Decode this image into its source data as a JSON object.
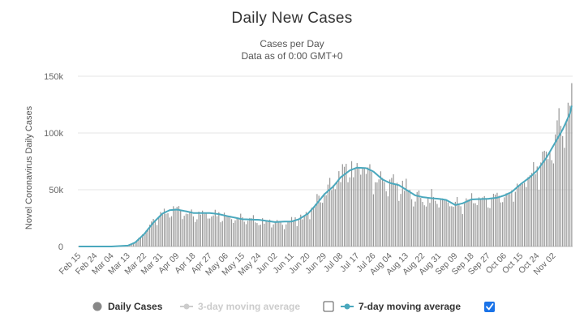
{
  "chart_data": {
    "type": "bar",
    "title": "Daily New Cases",
    "subtitle_lines": [
      "Cases per Day",
      "Data as of 0:00 GMT+0"
    ],
    "ylabel": "Novel Coronavirus Daily Cases",
    "xlabel": "",
    "ylim": [
      0,
      150000
    ],
    "y_ticks": [
      {
        "value": 0,
        "label": "0"
      },
      {
        "value": 50000,
        "label": "50k"
      },
      {
        "value": 100000,
        "label": "100k"
      },
      {
        "value": 150000,
        "label": "150k"
      }
    ],
    "x_tick_labels": [
      "Feb 15",
      "Feb 24",
      "Mar 04",
      "Mar 13",
      "Mar 22",
      "Mar 31",
      "Apr 09",
      "Apr 18",
      "Apr 27",
      "May 06",
      "May 15",
      "May 24",
      "Jun 02",
      "Jun 11",
      "Jun 20",
      "Jun 29",
      "Jul 08",
      "Jul 17",
      "Jul 26",
      "Aug 04",
      "Aug 13",
      "Aug 22",
      "Aug 31",
      "Sep 09",
      "Sep 18",
      "Sep 27",
      "Oct 06",
      "Oct 15",
      "Oct 24",
      "Nov 02"
    ],
    "start_date": "Feb 15",
    "grid": true,
    "legend": {
      "placement": "bottom",
      "items": [
        {
          "label": "Daily Cases",
          "color": "#888888",
          "symbol": "circle",
          "checkbox": false
        },
        {
          "label": "3-day moving average",
          "color": "#cccccc",
          "symbol": "line-circle",
          "checkbox": true,
          "checked": false
        },
        {
          "label": "7-day moving average",
          "color": "#4aa8bd",
          "symbol": "line-circle",
          "checkbox": true,
          "checked": true
        }
      ]
    },
    "series": [
      {
        "name": "Daily Cases",
        "color": "#999999",
        "anchors": [
          [
            "Feb 15",
            0
          ],
          [
            "Mar 04",
            0
          ],
          [
            "Mar 13",
            1000
          ],
          [
            "Mar 17",
            4000
          ],
          [
            "Mar 22",
            12000
          ],
          [
            "Mar 27",
            22000
          ],
          [
            "Apr 01",
            30000
          ],
          [
            "Apr 05",
            33000
          ],
          [
            "Apr 09",
            33000
          ],
          [
            "Apr 18",
            30000
          ],
          [
            "Apr 27",
            30000
          ],
          [
            "May 06",
            28000
          ],
          [
            "May 15",
            24000
          ],
          [
            "May 24",
            23000
          ],
          [
            "Jun 02",
            21000
          ],
          [
            "Jun 11",
            22000
          ],
          [
            "Jun 15",
            24000
          ],
          [
            "Jun 20",
            30000
          ],
          [
            "Jun 24",
            38000
          ],
          [
            "Jun 29",
            48000
          ],
          [
            "Jul 04",
            55000
          ],
          [
            "Jul 08",
            63000
          ],
          [
            "Jul 13",
            68000
          ],
          [
            "Jul 17",
            70000
          ],
          [
            "Jul 22",
            68000
          ],
          [
            "Jul 26",
            64000
          ],
          [
            "Jul 31",
            57000
          ],
          [
            "Aug 04",
            56000
          ],
          [
            "Aug 09",
            54000
          ],
          [
            "Aug 13",
            50000
          ],
          [
            "Aug 18",
            44000
          ],
          [
            "Aug 22",
            43000
          ],
          [
            "Aug 31",
            42000
          ],
          [
            "Sep 04",
            41000
          ],
          [
            "Sep 09",
            36000
          ],
          [
            "Sep 13",
            38000
          ],
          [
            "Sep 18",
            42000
          ],
          [
            "Sep 27",
            42000
          ],
          [
            "Oct 06",
            45000
          ],
          [
            "Oct 10",
            48000
          ],
          [
            "Oct 15",
            56000
          ],
          [
            "Oct 20",
            62000
          ],
          [
            "Oct 24",
            68000
          ],
          [
            "Oct 29",
            80000
          ],
          [
            "Nov 02",
            93000
          ],
          [
            "Nov 07",
            110000
          ],
          [
            "Nov 11",
            127000
          ],
          [
            "Nov 12",
            141000
          ]
        ],
        "noise": 0.12
      },
      {
        "name": "7-day moving average",
        "color": "#4aa8bd",
        "anchors": [
          [
            "Feb 15",
            0
          ],
          [
            "Mar 04",
            0
          ],
          [
            "Mar 13",
            800
          ],
          [
            "Mar 17",
            3500
          ],
          [
            "Mar 22",
            11000
          ],
          [
            "Mar 27",
            21000
          ],
          [
            "Apr 01",
            29000
          ],
          [
            "Apr 05",
            32000
          ],
          [
            "Apr 09",
            32500
          ],
          [
            "Apr 14",
            31000
          ],
          [
            "Apr 18",
            29500
          ],
          [
            "Apr 27",
            29500
          ],
          [
            "May 02",
            28500
          ],
          [
            "May 06",
            27000
          ],
          [
            "May 15",
            24000
          ],
          [
            "May 24",
            23500
          ],
          [
            "Jun 02",
            21500
          ],
          [
            "Jun 07",
            22000
          ],
          [
            "Jun 11",
            22000
          ],
          [
            "Jun 15",
            24000
          ],
          [
            "Jun 20",
            29000
          ],
          [
            "Jun 24",
            36000
          ],
          [
            "Jun 29",
            46000
          ],
          [
            "Jul 04",
            53000
          ],
          [
            "Jul 08",
            61000
          ],
          [
            "Jul 13",
            67000
          ],
          [
            "Jul 17",
            69500
          ],
          [
            "Jul 22",
            69000
          ],
          [
            "Jul 26",
            66000
          ],
          [
            "Jul 31",
            59000
          ],
          [
            "Aug 04",
            56000
          ],
          [
            "Aug 09",
            54000
          ],
          [
            "Aug 13",
            50000
          ],
          [
            "Aug 18",
            45000
          ],
          [
            "Aug 22",
            43500
          ],
          [
            "Aug 27",
            42500
          ],
          [
            "Aug 31",
            42000
          ],
          [
            "Sep 04",
            41000
          ],
          [
            "Sep 09",
            36500
          ],
          [
            "Sep 13",
            38000
          ],
          [
            "Sep 18",
            41500
          ],
          [
            "Sep 27",
            42000
          ],
          [
            "Oct 02",
            43000
          ],
          [
            "Oct 06",
            45000
          ],
          [
            "Oct 10",
            48000
          ],
          [
            "Oct 15",
            55000
          ],
          [
            "Oct 20",
            61000
          ],
          [
            "Oct 24",
            67000
          ],
          [
            "Oct 29",
            78000
          ],
          [
            "Nov 02",
            89000
          ],
          [
            "Nov 07",
            103000
          ],
          [
            "Nov 11",
            117000
          ],
          [
            "Nov 12",
            124000
          ]
        ]
      }
    ]
  }
}
